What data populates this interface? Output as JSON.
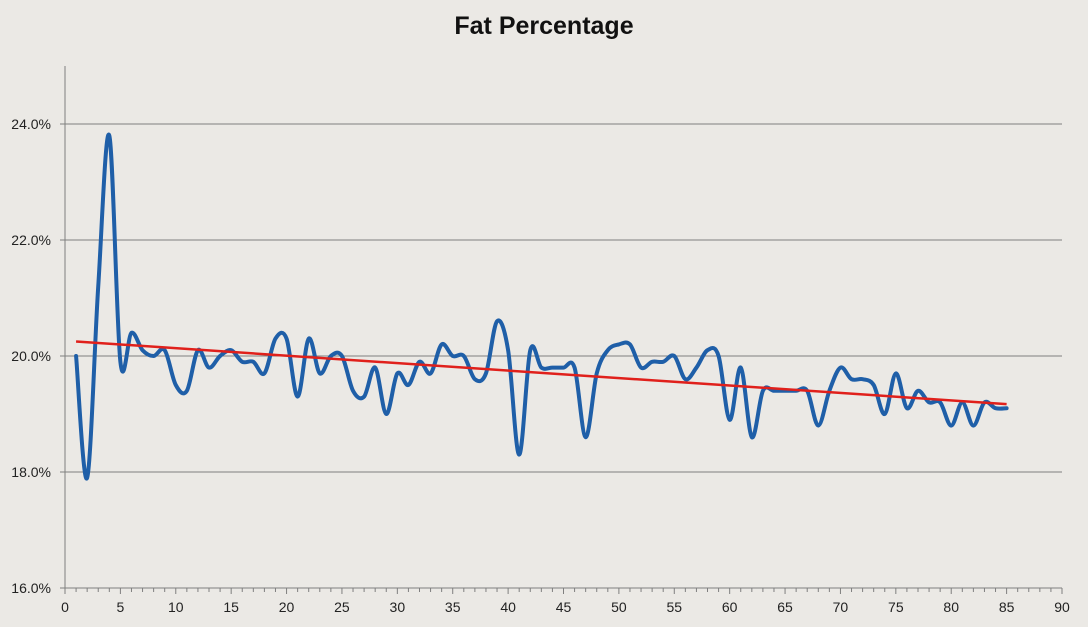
{
  "chart_data": {
    "type": "line",
    "title": "Fat Percentage",
    "xlabel": "",
    "ylabel": "",
    "xlim": [
      0,
      90
    ],
    "ylim": [
      0.16,
      0.25
    ],
    "x_ticks": [
      0,
      5,
      10,
      15,
      20,
      25,
      30,
      35,
      40,
      45,
      50,
      55,
      60,
      65,
      70,
      75,
      80,
      85,
      90
    ],
    "x_tick_labels": [
      "0",
      "5",
      "10",
      "15",
      "20",
      "25",
      "30",
      "35",
      "40",
      "45",
      "50",
      "55",
      "60",
      "65",
      "70",
      "75",
      "80",
      "85",
      "90"
    ],
    "y_ticks": [
      0.16,
      0.18,
      0.2,
      0.22,
      0.24
    ],
    "y_tick_labels": [
      "16.0%",
      "18.0%",
      "20.0%",
      "22.0%",
      "24.0%"
    ],
    "grid": true,
    "legend": "none",
    "series": [
      {
        "color": "#1f5fa8",
        "x": [
          1,
          2,
          3,
          4,
          5,
          6,
          7,
          8,
          9,
          10,
          11,
          12,
          13,
          14,
          15,
          16,
          17,
          18,
          19,
          20,
          21,
          22,
          23,
          24,
          25,
          26,
          27,
          28,
          29,
          30,
          31,
          32,
          33,
          34,
          35,
          36,
          37,
          38,
          39,
          40,
          41,
          42,
          43,
          44,
          45,
          46,
          47,
          48,
          49,
          50,
          51,
          52,
          53,
          54,
          55,
          56,
          57,
          58,
          59,
          60,
          61,
          62,
          63,
          64,
          65,
          66,
          67,
          68,
          69,
          70,
          71,
          72,
          73,
          74,
          75,
          76,
          77,
          78,
          79,
          80,
          81,
          82,
          83,
          84,
          85
        ],
        "values": [
          0.2,
          0.179,
          0.212,
          0.238,
          0.199,
          0.204,
          0.201,
          0.2,
          0.201,
          0.195,
          0.194,
          0.201,
          0.198,
          0.2,
          0.201,
          0.199,
          0.199,
          0.197,
          0.203,
          0.203,
          0.193,
          0.203,
          0.197,
          0.2,
          0.2,
          0.194,
          0.193,
          0.198,
          0.19,
          0.197,
          0.195,
          0.199,
          0.197,
          0.202,
          0.2,
          0.2,
          0.196,
          0.197,
          0.206,
          0.201,
          0.183,
          0.201,
          0.198,
          0.198,
          0.198,
          0.198,
          0.186,
          0.197,
          0.201,
          0.202,
          0.202,
          0.198,
          0.199,
          0.199,
          0.2,
          0.196,
          0.198,
          0.201,
          0.2,
          0.189,
          0.198,
          0.186,
          0.194,
          0.194,
          0.194,
          0.194,
          0.194,
          0.188,
          0.194,
          0.198,
          0.196,
          0.196,
          0.195,
          0.19,
          0.197,
          0.191,
          0.194,
          0.192,
          0.192,
          0.188,
          0.192,
          0.188,
          0.192,
          0.191,
          0.191
        ]
      },
      {
        "color": "#e0201b",
        "x": [
          1,
          85
        ],
        "values": [
          0.2025,
          0.1917
        ]
      }
    ]
  }
}
